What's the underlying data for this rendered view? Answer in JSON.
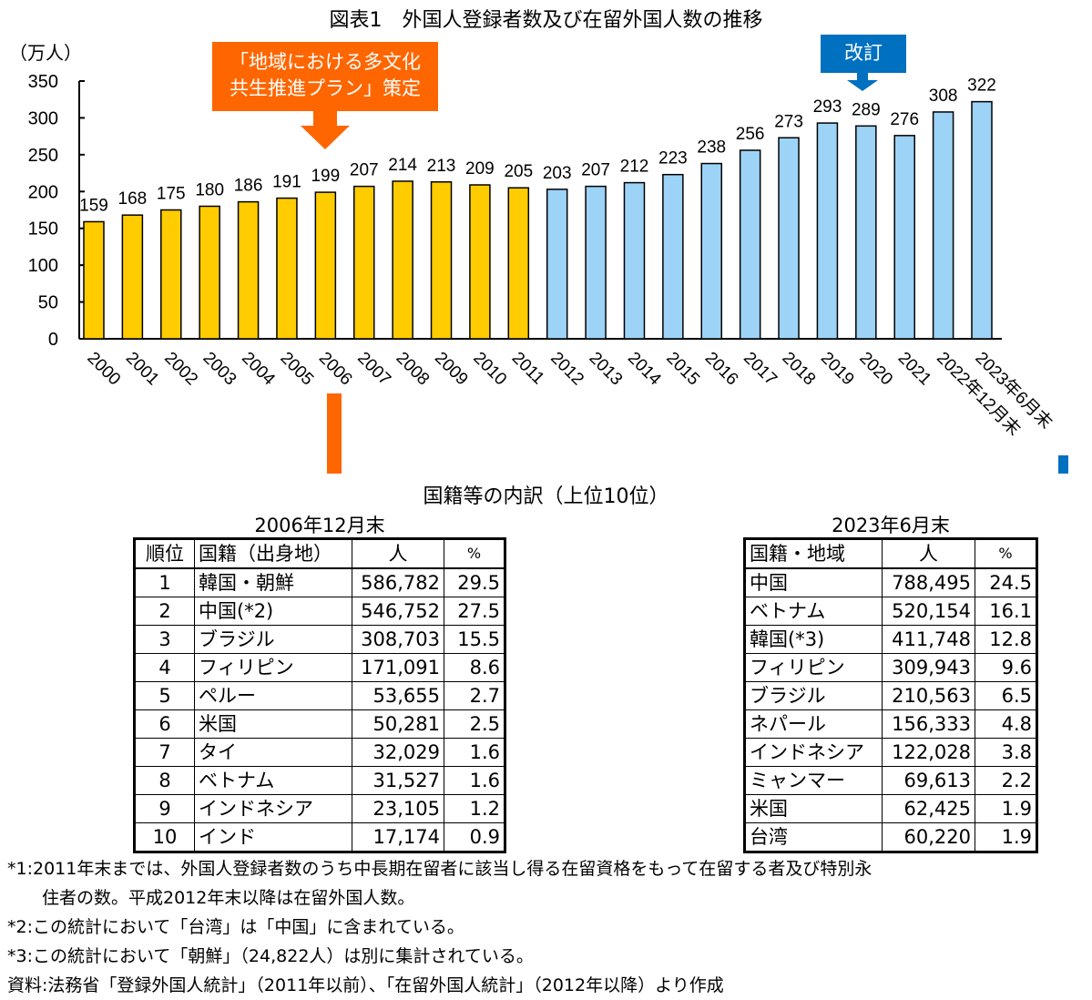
{
  "chart_data": {
    "type": "bar",
    "title": "図表1　外国人登録者数及び在留外国人数の推移",
    "ylabel": "（万人）",
    "ylim": [
      0,
      350
    ],
    "yticks": [
      0,
      50,
      100,
      150,
      200,
      250,
      300,
      350
    ],
    "categories": [
      "2000",
      "2001",
      "2002",
      "2003",
      "2004",
      "2005",
      "2006",
      "2007",
      "2008",
      "2009",
      "2010",
      "2011",
      "2012",
      "2013",
      "2014",
      "2015",
      "2016",
      "2017",
      "2018",
      "2019",
      "2020",
      "2021",
      "2022年12月末",
      "2023年6月末"
    ],
    "values": [
      159,
      168,
      175,
      180,
      186,
      191,
      199,
      207,
      214,
      213,
      209,
      205,
      203,
      207,
      212,
      223,
      238,
      256,
      273,
      293,
      289,
      276,
      308,
      322
    ],
    "colors": {
      "registered": "#FFCC00",
      "resident": "#9DD3F7",
      "orange_callout": "#FF6600",
      "blue_callout": "#0070C0"
    },
    "color_split_index": 12,
    "grid": false,
    "annotations": {
      "plan": "「地域における多文化共生推進プラン」策定",
      "plan_line1": "「地域における多文化",
      "plan_line2": "共生推進プラン」策定",
      "plan_year": "2006",
      "revision": "改訂",
      "revision_year": "2020"
    }
  },
  "breakdown_title": "国籍等の内訳（上位10位）",
  "table_2006": {
    "caption": "2006年12月末",
    "headers": [
      "順位",
      "国籍（出身地）",
      "人",
      "%"
    ],
    "rows": [
      [
        "1",
        "韓国・朝鮮",
        "586,782",
        "29.5"
      ],
      [
        "2",
        "中国(*2)",
        "546,752",
        "27.5"
      ],
      [
        "3",
        "ブラジル",
        "308,703",
        "15.5"
      ],
      [
        "4",
        "フィリピン",
        "171,091",
        "8.6"
      ],
      [
        "5",
        "ペルー",
        "53,655",
        "2.7"
      ],
      [
        "6",
        "米国",
        "50,281",
        "2.5"
      ],
      [
        "7",
        "タイ",
        "32,029",
        "1.6"
      ],
      [
        "8",
        "ベトナム",
        "31,527",
        "1.6"
      ],
      [
        "9",
        "インドネシア",
        "23,105",
        "1.2"
      ],
      [
        "10",
        "インド",
        "17,174",
        "0.9"
      ]
    ]
  },
  "table_2023": {
    "caption": "2023年6月末",
    "headers": [
      "国籍・地域",
      "人",
      "%"
    ],
    "rows": [
      [
        "中国",
        "788,495",
        "24.5"
      ],
      [
        "ベトナム",
        "520,154",
        "16.1"
      ],
      [
        "韓国(*3)",
        "411,748",
        "12.8"
      ],
      [
        "フィリピン",
        "309,943",
        "9.6"
      ],
      [
        "ブラジル",
        "210,563",
        "6.5"
      ],
      [
        "ネパール",
        "156,333",
        "4.8"
      ],
      [
        "インドネシア",
        "122,028",
        "3.8"
      ],
      [
        "ミャンマー",
        "69,613",
        "2.2"
      ],
      [
        "米国",
        "62,425",
        "1.9"
      ],
      [
        "台湾",
        "60,220",
        "1.9"
      ]
    ]
  },
  "notes": {
    "n1_line1": "*1:2011年末までは、外国人登録者数のうち中長期在留者に該当し得る在留資格をもって在留する者及び特別永",
    "n1_line2": "住者の数。平成2012年末以降は在留外国人数。",
    "n2": "*2:この統計において「台湾」は「中国」に含まれている。",
    "n3": "*3:この統計において「朝鮮」（24,822人）は別に集計されている。",
    "source": "資料:法務省「登録外国人統計」（2011年以前）、「在留外国人統計」（2012年以降）より作成"
  }
}
